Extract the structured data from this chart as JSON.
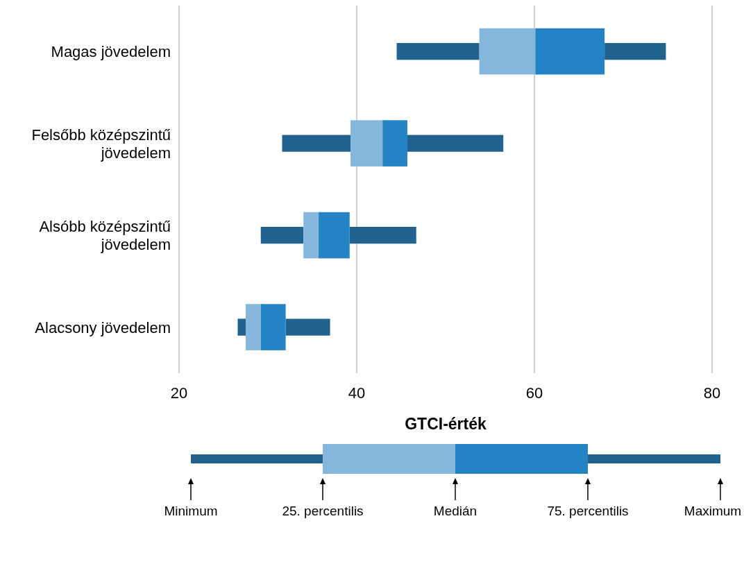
{
  "chart_data": {
    "type": "box",
    "orientation": "horizontal",
    "xlabel": "GTCI-érték",
    "categories": [
      "Magas jövedelem",
      "Felsőbb középszintű jövedelem",
      "Alsóbb középszintű jövedelem",
      "Alacsony jövedelem"
    ],
    "boxes": [
      {
        "low": 44.5,
        "q1": 53.8,
        "median": 60.2,
        "q3": 67.9,
        "high": 74.8
      },
      {
        "low": 31.6,
        "q1": 39.3,
        "median": 43.0,
        "q3": 45.7,
        "high": 56.5
      },
      {
        "low": 29.2,
        "q1": 34.0,
        "median": 35.8,
        "q3": 39.2,
        "high": 46.7
      },
      {
        "low": 26.6,
        "q1": 27.5,
        "median": 29.3,
        "q3": 32.0,
        "high": 37.0
      }
    ],
    "color": "#85b7dc",
    "xlim": [
      20,
      80
    ],
    "xticks": [
      20,
      40,
      60,
      80
    ],
    "grid": "x",
    "annotations": [
      "Minimum",
      "25. percentilis",
      "Medián",
      "75. percentilis",
      "Maximum"
    ]
  }
}
